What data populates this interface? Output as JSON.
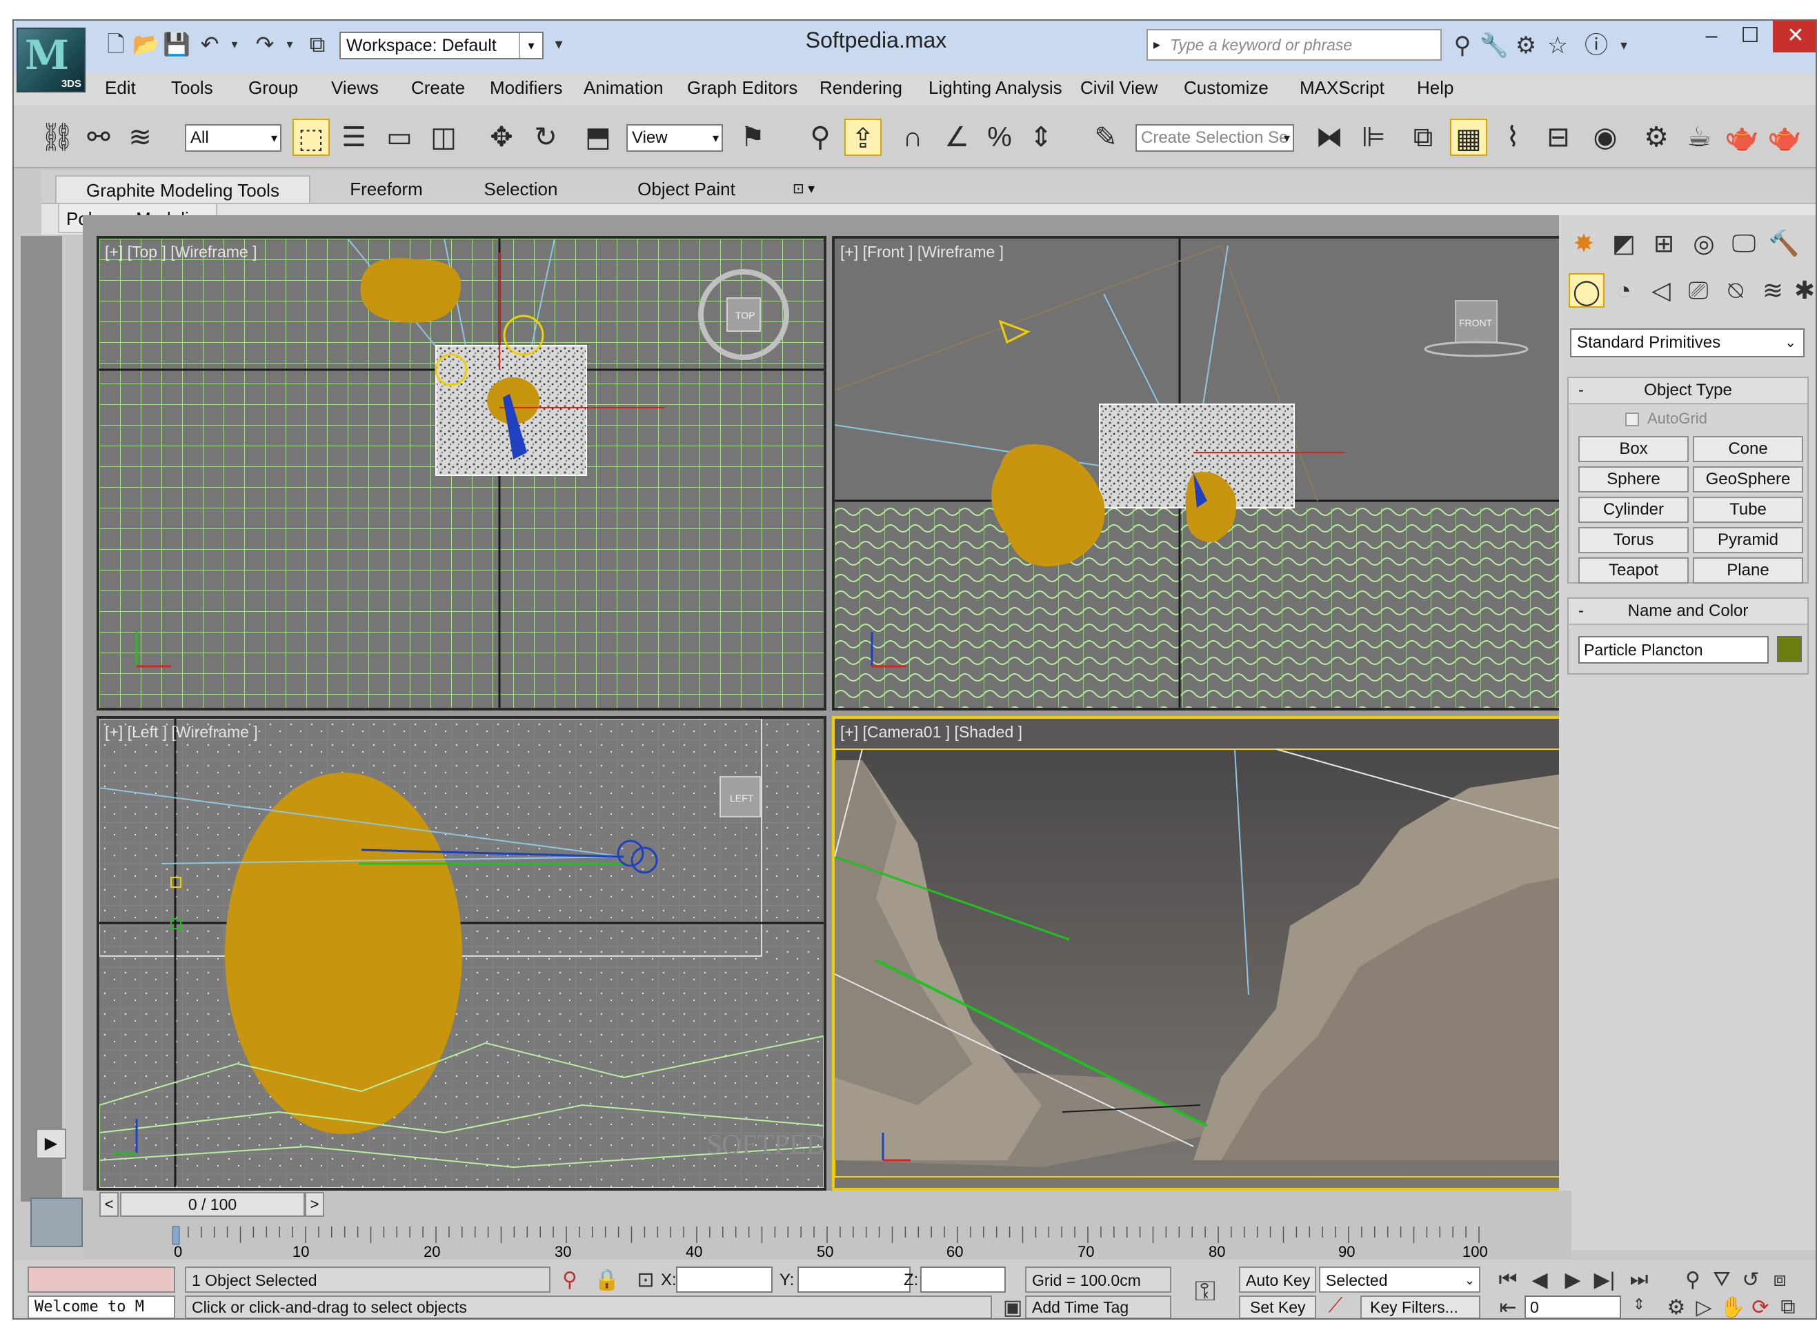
{
  "window": {
    "title": "Softpedia.max",
    "logo_text": "3DS",
    "workspace": "Workspace: Default",
    "search_placeholder": "Type a keyword or phrase"
  },
  "menu": [
    "Edit",
    "Tools",
    "Group",
    "Views",
    "Create",
    "Modifiers",
    "Animation",
    "Graph Editors",
    "Rendering",
    "Lighting Analysis",
    "Civil View",
    "Customize",
    "MAXScript",
    "Help"
  ],
  "toolbar": {
    "selection_filter": "All",
    "reference_coord": "View",
    "named_selection_placeholder": "Create Selection Se"
  },
  "ribbon": {
    "tabs": [
      "Graphite Modeling Tools",
      "Freeform",
      "Selection",
      "Object Paint"
    ],
    "panel": "Polygon Modeling"
  },
  "viewports": {
    "top": "[+] [Top ] [Wireframe ]",
    "front": "[+] [Front ] [Wireframe ]",
    "left": "[+] [Left ] [Wireframe ]",
    "camera": "[+] [Camera01 ] [Shaded ]",
    "top_cube": "TOP",
    "front_cube": "FRONT",
    "left_cube": "LEFT",
    "watermark": "SOFTPEDIA"
  },
  "command_panel": {
    "category": "Standard Primitives",
    "object_type_title": "Object Type",
    "autogrid": "AutoGrid",
    "primitives": [
      "Box",
      "Cone",
      "Sphere",
      "GeoSphere",
      "Cylinder",
      "Tube",
      "Torus",
      "Pyramid",
      "Teapot",
      "Plane"
    ],
    "name_color_title": "Name and Color",
    "object_name": "Particle Plancton",
    "object_color": "#6b7d0c",
    "rollout_minus": "-"
  },
  "timeline": {
    "frame_display": "0 / 100",
    "ticks": [
      "0",
      "10",
      "20",
      "30",
      "40",
      "50",
      "60",
      "70",
      "80",
      "90",
      "100"
    ]
  },
  "status": {
    "selection": "1 Object Selected",
    "prompt": "Click or click-and-drag to select objects",
    "listener": "Welcome to M",
    "x_label": "X:",
    "y_label": "Y:",
    "z_label": "Z:",
    "grid": "Grid = 100.0cm",
    "add_time_tag": "Add Time Tag",
    "auto_key": "Auto Key",
    "set_key": "Set Key",
    "key_mode": "Selected",
    "key_filters": "Key Filters...",
    "current_frame": "0"
  },
  "colors": {
    "grid": "#b8f0a0",
    "particle": "#c8960e",
    "selection_yellow": "#f0d000",
    "close": "#c7302b"
  }
}
